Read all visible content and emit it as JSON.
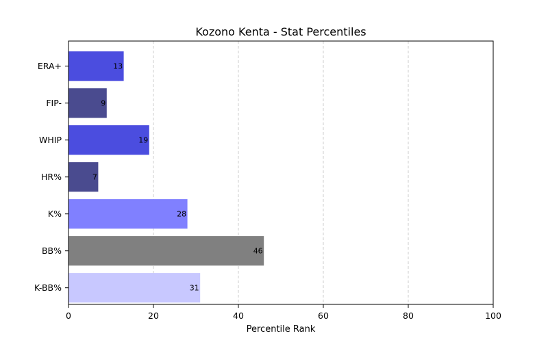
{
  "chart_data": {
    "type": "bar",
    "orientation": "horizontal",
    "title": "Kozono Kenta - Stat Percentiles",
    "xlabel": "Percentile Rank",
    "ylabel": "",
    "xlim": [
      0,
      100
    ],
    "xticks": [
      "0",
      "20",
      "40",
      "60",
      "80",
      "100"
    ],
    "grid": "vertical dashed",
    "legend": "none",
    "categories": [
      "ERA+",
      "FIP-",
      "WHIP",
      "HR%",
      "K%",
      "BB%",
      "K-BB%"
    ],
    "values": [
      13,
      9,
      19,
      7,
      28,
      46,
      31
    ],
    "value_labels": [
      "13",
      "9",
      "19",
      "7",
      "28",
      "46",
      "31"
    ],
    "colors": [
      "#4b4ddf",
      "#4a4b8f",
      "#4b4ddf",
      "#4a4b8f",
      "#8080ff",
      "#808080",
      "#c8c8ff"
    ]
  }
}
